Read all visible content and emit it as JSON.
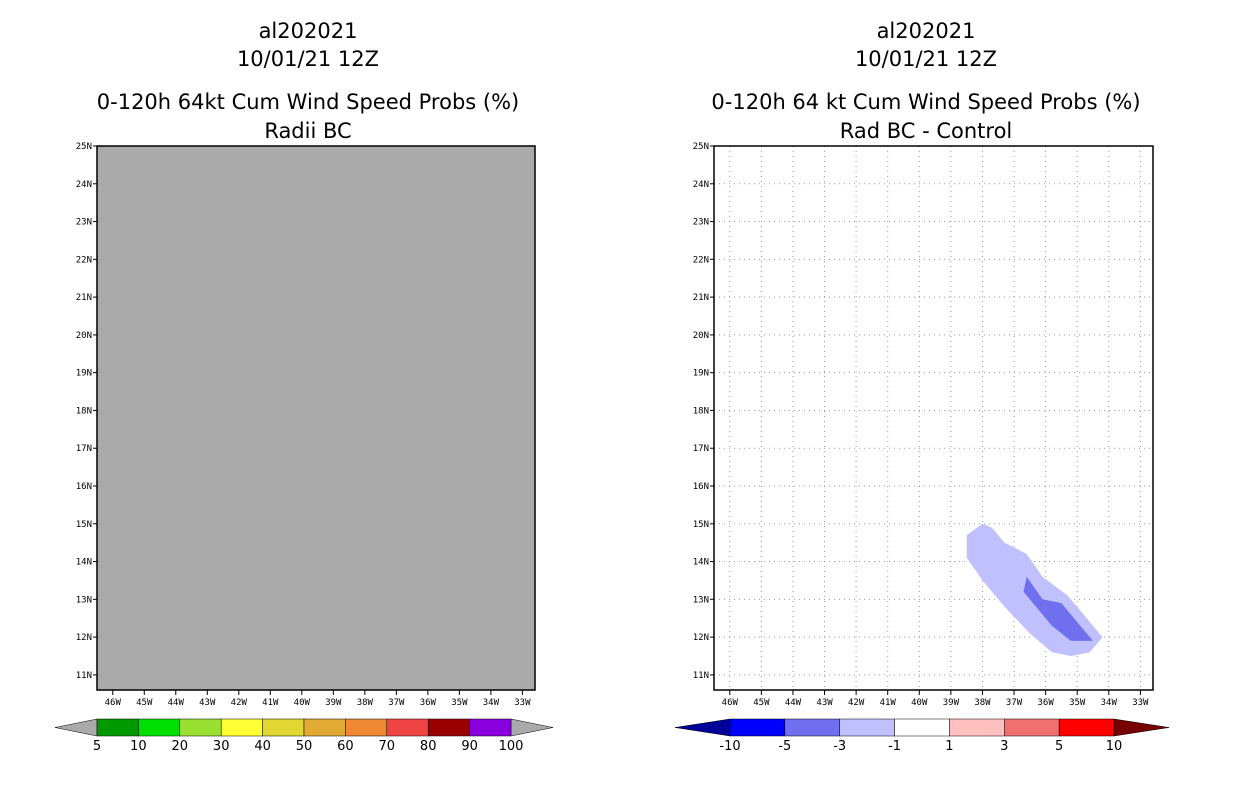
{
  "chart_data": [
    {
      "type": "heatmap",
      "storm_id": "al202021",
      "date": "10/01/21 12Z",
      "title": "0-120h 64kt Cum Wind Speed Probs (%)",
      "subtitle": "Radii BC",
      "x_labels": [
        "46W",
        "45W",
        "44W",
        "43W",
        "42W",
        "41W",
        "40W",
        "39W",
        "38W",
        "37W",
        "36W",
        "35W",
        "34W",
        "33W"
      ],
      "y_labels": [
        "25N",
        "24N",
        "23N",
        "22N",
        "21N",
        "20N",
        "19N",
        "18N",
        "17N",
        "16N",
        "15N",
        "14N",
        "13N",
        "12N",
        "11N"
      ],
      "x_range": [
        -46.5,
        -32.6
      ],
      "y_range": [
        10.6,
        25.0
      ],
      "grid": false,
      "field": "all below 5% (gray fill)",
      "field_color": "#aaaaaa",
      "colorbar": {
        "labels": [
          "5",
          "10",
          "20",
          "30",
          "40",
          "50",
          "60",
          "70",
          "80",
          "90",
          "100"
        ],
        "colors": [
          "#009900",
          "#00e000",
          "#99e033",
          "#ffff33",
          "#e0d733",
          "#e0aa33",
          "#f08833",
          "#f04444",
          "#990000",
          "#8800dd"
        ],
        "end_color": "#aaaaaa"
      }
    },
    {
      "type": "heatmap",
      "storm_id": "al202021",
      "date": "10/01/21 12Z",
      "title": "0-120h 64 kt Cum Wind Speed Probs (%)",
      "subtitle": "Rad BC - Control",
      "x_labels": [
        "46W",
        "45W",
        "44W",
        "43W",
        "42W",
        "41W",
        "40W",
        "39W",
        "38W",
        "37W",
        "36W",
        "35W",
        "34W",
        "33W"
      ],
      "y_labels": [
        "25N",
        "24N",
        "23N",
        "22N",
        "21N",
        "20N",
        "19N",
        "18N",
        "17N",
        "16N",
        "15N",
        "14N",
        "13N",
        "12N",
        "11N"
      ],
      "x_range": [
        -46.5,
        -32.6
      ],
      "y_range": [
        10.6,
        25.0
      ],
      "grid": true,
      "contours": [
        {
          "level": "-3 to -1",
          "color": "#c0c0ff",
          "points": [
            [
              -38.0,
              15.0
            ],
            [
              -37.7,
              14.9
            ],
            [
              -37.3,
              14.5
            ],
            [
              -36.6,
              14.2
            ],
            [
              -36.1,
              13.6
            ],
            [
              -35.3,
              13.1
            ],
            [
              -34.7,
              12.5
            ],
            [
              -34.2,
              12.0
            ],
            [
              -34.6,
              11.6
            ],
            [
              -35.2,
              11.5
            ],
            [
              -35.8,
              11.6
            ],
            [
              -36.5,
              12.1
            ],
            [
              -37.3,
              12.8
            ],
            [
              -38.0,
              13.5
            ],
            [
              -38.5,
              14.1
            ],
            [
              -38.5,
              14.7
            ]
          ]
        },
        {
          "level": "-5 to -3",
          "color": "#7070ee",
          "points": [
            [
              -36.6,
              13.6
            ],
            [
              -36.1,
              13.0
            ],
            [
              -35.5,
              12.9
            ],
            [
              -34.8,
              12.2
            ],
            [
              -34.5,
              11.9
            ],
            [
              -35.2,
              11.9
            ],
            [
              -35.8,
              12.3
            ],
            [
              -36.3,
              12.8
            ],
            [
              -36.7,
              13.2
            ]
          ]
        }
      ],
      "colorbar": {
        "labels": [
          "-10",
          "-5",
          "-3",
          "-1",
          "1",
          "3",
          "5",
          "10"
        ],
        "colors": [
          "#0000ff",
          "#7070ee",
          "#c0c0ff",
          "#ffffff",
          "#ffc0c0",
          "#f07070",
          "#ff0000"
        ],
        "low_end_color": "#000099",
        "high_end_color": "#770000"
      }
    }
  ]
}
